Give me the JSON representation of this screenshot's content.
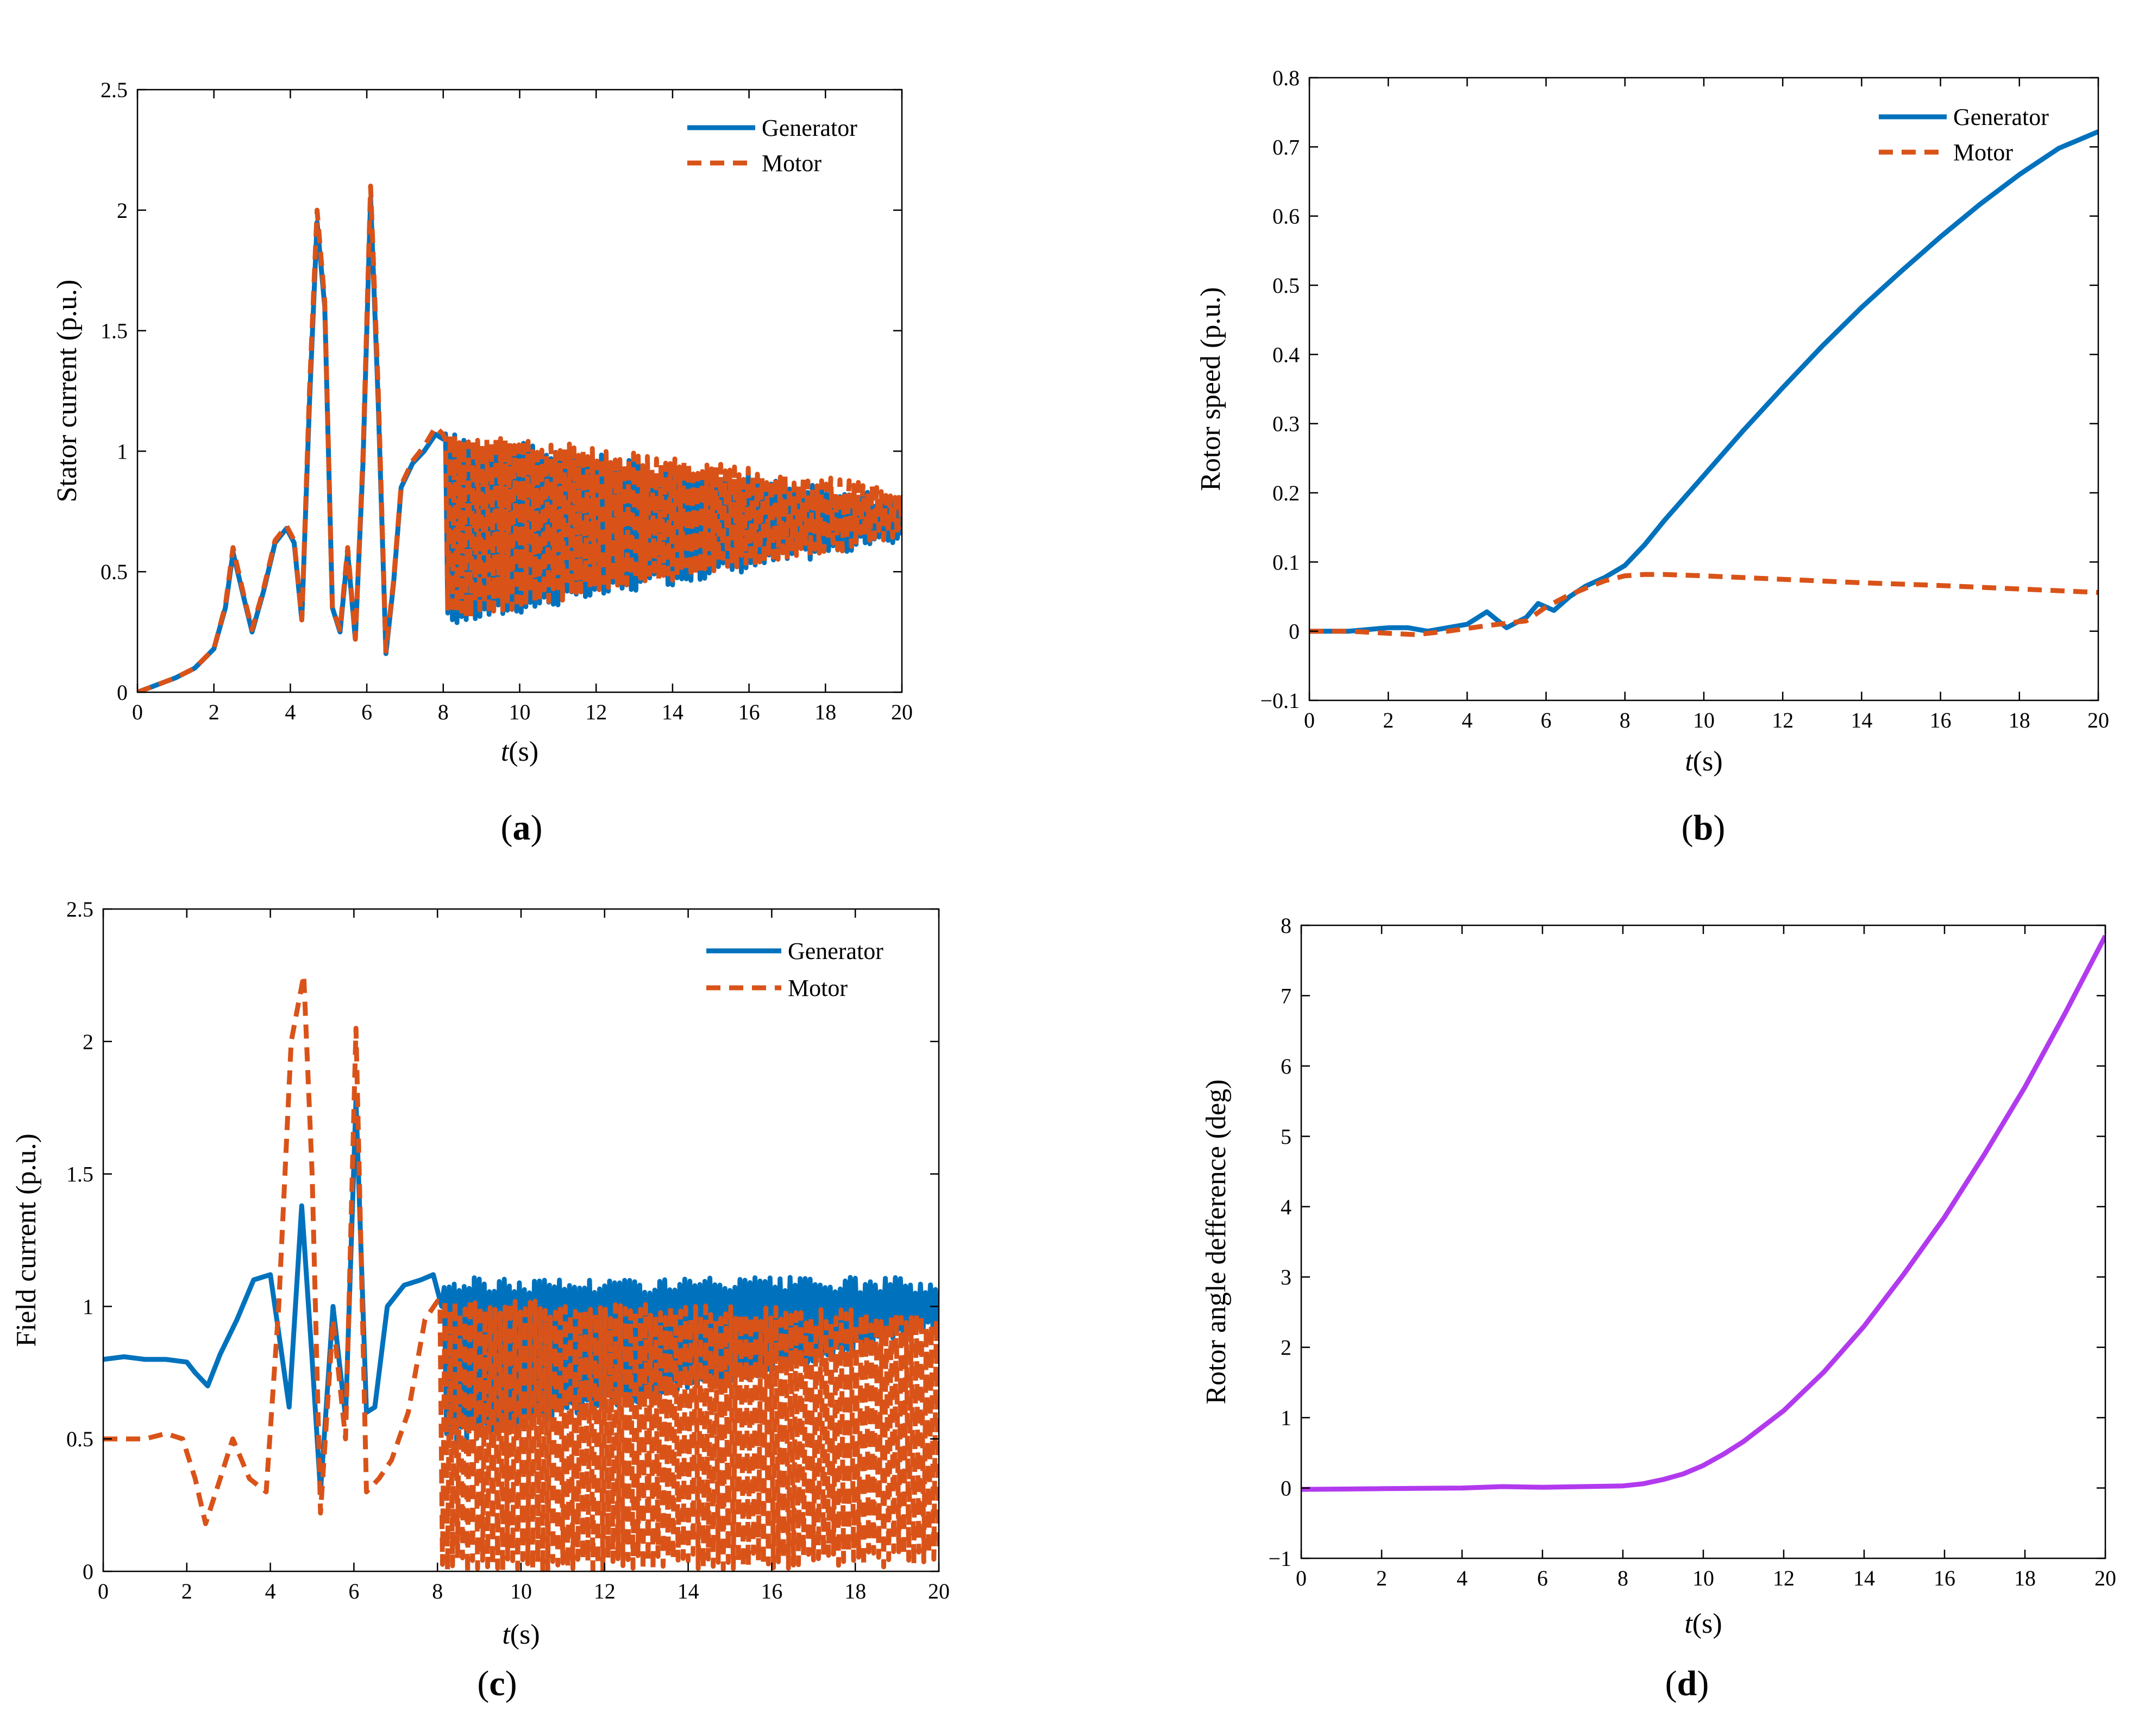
{
  "chart_data": [
    {
      "type": "line",
      "caption": "(a)",
      "ylabel": "Stator current (p.u.)",
      "xlabel_italic": "t",
      "xlabel_rest": "(s)",
      "xlim": [
        0,
        20
      ],
      "ylim": [
        0,
        2.5
      ],
      "xticks": [
        0,
        2,
        4,
        6,
        8,
        10,
        12,
        14,
        16,
        18,
        20
      ],
      "yticks": [
        0,
        0.5,
        1,
        1.5,
        2,
        2.5
      ],
      "grid": false,
      "legend_position": "top-right",
      "series": [
        {
          "name": "Generator",
          "color": "#0072BD",
          "style": "solid",
          "x": [
            0,
            0.5,
            1,
            1.5,
            2,
            2.3,
            2.5,
            2.8,
            3,
            3.3,
            3.6,
            3.9,
            4.1,
            4.3,
            4.5,
            4.7,
            4.9,
            5.1,
            5.3,
            5.5,
            5.7,
            5.9,
            6.1,
            6.3,
            6.5,
            6.7,
            6.9,
            7.2,
            7.5,
            7.8,
            8.0
          ],
          "y": [
            0,
            0.03,
            0.06,
            0.1,
            0.18,
            0.35,
            0.58,
            0.38,
            0.25,
            0.42,
            0.62,
            0.68,
            0.62,
            0.3,
            1.2,
            1.95,
            1.6,
            0.35,
            0.25,
            0.58,
            0.22,
            0.95,
            2.05,
            1.2,
            0.16,
            0.45,
            0.85,
            0.95,
            1.0,
            1.07,
            1.05
          ],
          "oscillation": {
            "start": 8,
            "end": 20,
            "upper": [
              1.05,
              0.78
            ],
            "lower": [
              0.3,
              0.65
            ]
          }
        },
        {
          "name": "Motor",
          "color": "#D95319",
          "style": "dashed",
          "x": [
            0,
            0.5,
            1,
            1.5,
            2,
            2.3,
            2.5,
            2.8,
            3,
            3.3,
            3.6,
            3.9,
            4.1,
            4.3,
            4.5,
            4.7,
            4.9,
            5.1,
            5.3,
            5.5,
            5.7,
            5.9,
            6.1,
            6.3,
            6.5,
            6.7,
            6.9,
            7.2,
            7.5,
            7.8,
            8.0
          ],
          "y": [
            0,
            0.03,
            0.06,
            0.1,
            0.18,
            0.36,
            0.6,
            0.39,
            0.26,
            0.43,
            0.63,
            0.69,
            0.63,
            0.3,
            1.25,
            2.0,
            1.62,
            0.35,
            0.26,
            0.6,
            0.22,
            0.98,
            2.1,
            1.25,
            0.17,
            0.46,
            0.86,
            0.96,
            1.02,
            1.1,
            1.07
          ],
          "oscillation": {
            "start": 8,
            "end": 20,
            "upper": [
              1.07,
              0.82
            ],
            "lower": [
              0.32,
              0.66
            ]
          }
        }
      ]
    },
    {
      "type": "line",
      "caption": "(b)",
      "ylabel": "Rotor speed (p.u.)",
      "xlabel_italic": "t",
      "xlabel_rest": "(s)",
      "xlim": [
        0,
        20
      ],
      "ylim": [
        -0.1,
        0.8
      ],
      "xticks": [
        0,
        2,
        4,
        6,
        8,
        10,
        12,
        14,
        16,
        18,
        20
      ],
      "yticks": [
        -0.1,
        0,
        0.1,
        0.2,
        0.3,
        0.4,
        0.5,
        0.6,
        0.7,
        0.8
      ],
      "grid": false,
      "legend_position": "top-right",
      "series": [
        {
          "name": "Generator",
          "color": "#0072BD",
          "style": "solid",
          "x": [
            0,
            1,
            2,
            2.5,
            3,
            3.5,
            4,
            4.5,
            5,
            5.5,
            5.8,
            6.2,
            6.6,
            7,
            7.5,
            8,
            8.5,
            9,
            10,
            11,
            12,
            13,
            14,
            15,
            16,
            17,
            18,
            19,
            20
          ],
          "y": [
            0,
            0,
            0.005,
            0.005,
            0,
            0.005,
            0.01,
            0.028,
            0.005,
            0.02,
            0.04,
            0.03,
            0.05,
            0.065,
            0.078,
            0.095,
            0.125,
            0.16,
            0.225,
            0.29,
            0.352,
            0.412,
            0.468,
            0.52,
            0.57,
            0.617,
            0.66,
            0.698,
            0.722
          ]
        },
        {
          "name": "Motor",
          "color": "#D95319",
          "style": "dashed",
          "x": [
            0,
            1,
            2,
            2.7,
            3.5,
            4.5,
            5.5,
            6,
            6.5,
            7,
            7.5,
            8,
            8.5,
            9,
            10,
            12,
            14,
            16,
            18,
            20
          ],
          "y": [
            0,
            0,
            -0.003,
            -0.005,
            0,
            0.008,
            0.015,
            0.035,
            0.05,
            0.062,
            0.073,
            0.08,
            0.082,
            0.082,
            0.08,
            0.075,
            0.07,
            0.066,
            0.061,
            0.056
          ]
        }
      ]
    },
    {
      "type": "line",
      "caption": "(c)",
      "ylabel": "Field current (p.u.)",
      "xlabel_italic": "t",
      "xlabel_rest": "(s)",
      "xlim": [
        0,
        20
      ],
      "ylim": [
        0,
        2.5
      ],
      "xticks": [
        0,
        2,
        4,
        6,
        8,
        10,
        12,
        14,
        16,
        18,
        20
      ],
      "yticks": [
        0,
        0.5,
        1,
        1.5,
        2,
        2.5
      ],
      "grid": false,
      "legend_position": "top-right",
      "series": [
        {
          "name": "Generator",
          "color": "#0072BD",
          "style": "solid",
          "x": [
            0,
            0.5,
            1,
            1.5,
            2,
            2.2,
            2.5,
            2.8,
            3.2,
            3.6,
            4.0,
            4.2,
            4.45,
            4.75,
            5.0,
            5.2,
            5.5,
            5.8,
            6.05,
            6.3,
            6.5,
            6.8,
            7.2,
            7.6,
            7.9,
            8.1
          ],
          "y": [
            0.8,
            0.81,
            0.8,
            0.8,
            0.79,
            0.75,
            0.7,
            0.82,
            0.95,
            1.1,
            1.12,
            0.9,
            0.62,
            1.38,
            0.8,
            0.3,
            1.0,
            0.58,
            1.78,
            0.6,
            0.62,
            1.0,
            1.08,
            1.1,
            1.12,
            1.0
          ],
          "oscillation": {
            "start": 8.1,
            "end": 20,
            "upper": [
              1.08,
              1.08
            ],
            "lower": [
              0.5,
              0.92
            ]
          }
        },
        {
          "name": "Motor",
          "color": "#D95319",
          "style": "dashed",
          "x": [
            0,
            0.5,
            1,
            1.5,
            1.9,
            2.2,
            2.45,
            2.8,
            3.1,
            3.5,
            3.9,
            4.2,
            4.5,
            4.8,
            5.0,
            5.2,
            5.5,
            5.8,
            6.05,
            6.3,
            6.6,
            6.9,
            7.3,
            7.7,
            8.0
          ],
          "y": [
            0.5,
            0.5,
            0.5,
            0.52,
            0.5,
            0.35,
            0.18,
            0.35,
            0.5,
            0.35,
            0.3,
            1.0,
            2.0,
            2.25,
            1.5,
            0.22,
            0.95,
            0.5,
            2.05,
            0.3,
            0.35,
            0.42,
            0.6,
            0.95,
            1.02
          ],
          "oscillation": {
            "start": 8.0,
            "end": 20,
            "upper": [
              1.0,
              0.95
            ],
            "lower": [
              0.02,
              0.05
            ]
          }
        }
      ]
    },
    {
      "type": "line",
      "caption": "(d)",
      "ylabel": "Rotor angle defference (deg)",
      "xlabel_italic": "t",
      "xlabel_rest": "(s)",
      "xlim": [
        0,
        20
      ],
      "ylim": [
        -1,
        8
      ],
      "xticks": [
        0,
        2,
        4,
        6,
        8,
        10,
        12,
        14,
        16,
        18,
        20
      ],
      "yticks": [
        -1,
        0,
        1,
        2,
        3,
        4,
        5,
        6,
        7,
        8
      ],
      "grid": false,
      "series": [
        {
          "name": "",
          "color": "#B23AEE",
          "style": "solid",
          "x": [
            0,
            2,
            4,
            5,
            6,
            7,
            8,
            8.5,
            9,
            9.5,
            10,
            10.5,
            11,
            12,
            13,
            14,
            15,
            16,
            17,
            18,
            19,
            20
          ],
          "y": [
            -0.02,
            -0.01,
            0.0,
            0.02,
            0.01,
            0.02,
            0.03,
            0.06,
            0.12,
            0.2,
            0.32,
            0.48,
            0.66,
            1.1,
            1.65,
            2.3,
            3.05,
            3.85,
            4.75,
            5.7,
            6.75,
            7.85
          ]
        }
      ]
    }
  ]
}
